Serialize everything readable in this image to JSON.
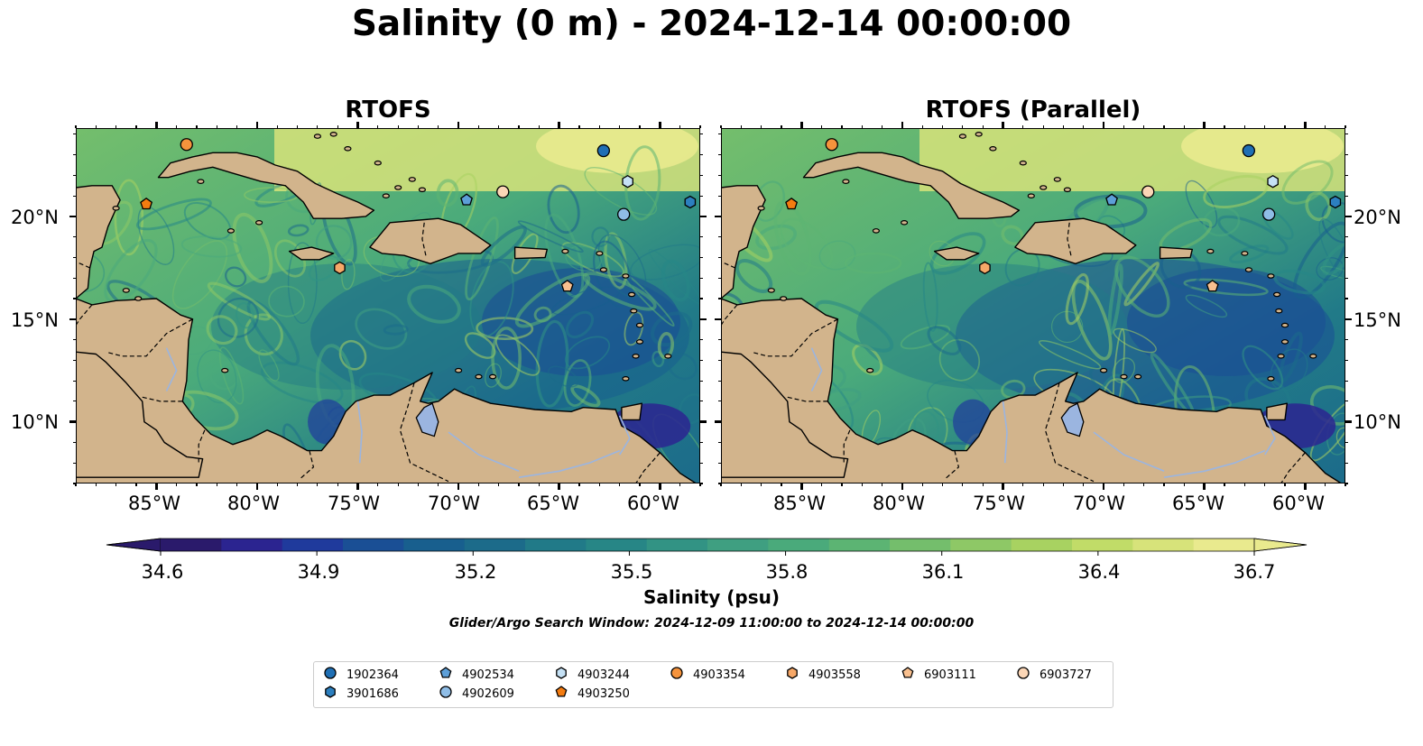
{
  "title": "Salinity (0 m) - 2024-12-14 00:00:00",
  "panels": [
    {
      "title": "RTOFS"
    },
    {
      "title": "RTOFS (Parallel)"
    }
  ],
  "lat_labels": [
    "20°N",
    "15°N",
    "10°N"
  ],
  "lon_labels": [
    "85°W",
    "80°W",
    "75°W",
    "70°W",
    "65°W",
    "60°W"
  ],
  "map_extent": {
    "lon": [
      -89,
      -58
    ],
    "lat": [
      7,
      24.3
    ]
  },
  "colorbar": {
    "title": "Salinity (psu)",
    "tick_labels": [
      "34.6",
      "34.9",
      "35.2",
      "35.5",
      "35.8",
      "36.1",
      "36.4",
      "36.7"
    ],
    "range": [
      34.6,
      36.7
    ],
    "colors": [
      "#2a1a6b",
      "#2b2490",
      "#1f3a9c",
      "#1a4f95",
      "#185f8e",
      "#1c6b8a",
      "#217a88",
      "#278686",
      "#329384",
      "#3f9f81",
      "#4aaa7b",
      "#5cb473",
      "#74be6c",
      "#8ec866",
      "#a8d261",
      "#c1dc68",
      "#d7e37a",
      "#e9ea8e"
    ]
  },
  "colors": {
    "land": "#d2b48c",
    "lake": "#9bb5e0",
    "pacific": "#2a1a6b"
  },
  "search_window": "Glider/Argo Search Window: 2024-12-09 11:00:00 to 2024-12-14 00:00:00",
  "legend": [
    {
      "id": "1902364",
      "marker": "circle",
      "color": "#1f6fb4"
    },
    {
      "id": "3901686",
      "marker": "hexagon",
      "color": "#2c7fbf"
    },
    {
      "id": "4902534",
      "marker": "pentagon",
      "color": "#5d9fd8"
    },
    {
      "id": "4902609",
      "marker": "circle",
      "color": "#8fbde6"
    },
    {
      "id": "4903244",
      "marker": "hexagon",
      "color": "#c5e1f5"
    },
    {
      "id": "4903250",
      "marker": "pentagon",
      "color": "#f47c10"
    },
    {
      "id": "4903354",
      "marker": "circle",
      "color": "#f5933c"
    },
    {
      "id": "4903558",
      "marker": "hexagon",
      "color": "#f7a868"
    },
    {
      "id": "6903111",
      "marker": "pentagon",
      "color": "#f9c08f"
    },
    {
      "id": "6903727",
      "marker": "circle",
      "color": "#fbd6b6"
    }
  ],
  "floats": [
    {
      "id": "1902364",
      "lon": -62.8,
      "lat": 23.2
    },
    {
      "id": "3901686",
      "lon": -58.5,
      "lat": 20.7
    },
    {
      "id": "4902534",
      "lon": -69.6,
      "lat": 20.8
    },
    {
      "id": "4902609",
      "lon": -61.8,
      "lat": 20.1
    },
    {
      "id": "4903244",
      "lon": -61.6,
      "lat": 21.7
    },
    {
      "id": "4903250",
      "lon": -85.5,
      "lat": 20.6
    },
    {
      "id": "4903354",
      "lon": -83.5,
      "lat": 23.5
    },
    {
      "id": "4903558",
      "lon": -75.9,
      "lat": 17.5
    },
    {
      "id": "6903111",
      "lon": -64.6,
      "lat": 16.6
    },
    {
      "id": "6903727",
      "lon": -67.8,
      "lat": 21.2
    }
  ]
}
